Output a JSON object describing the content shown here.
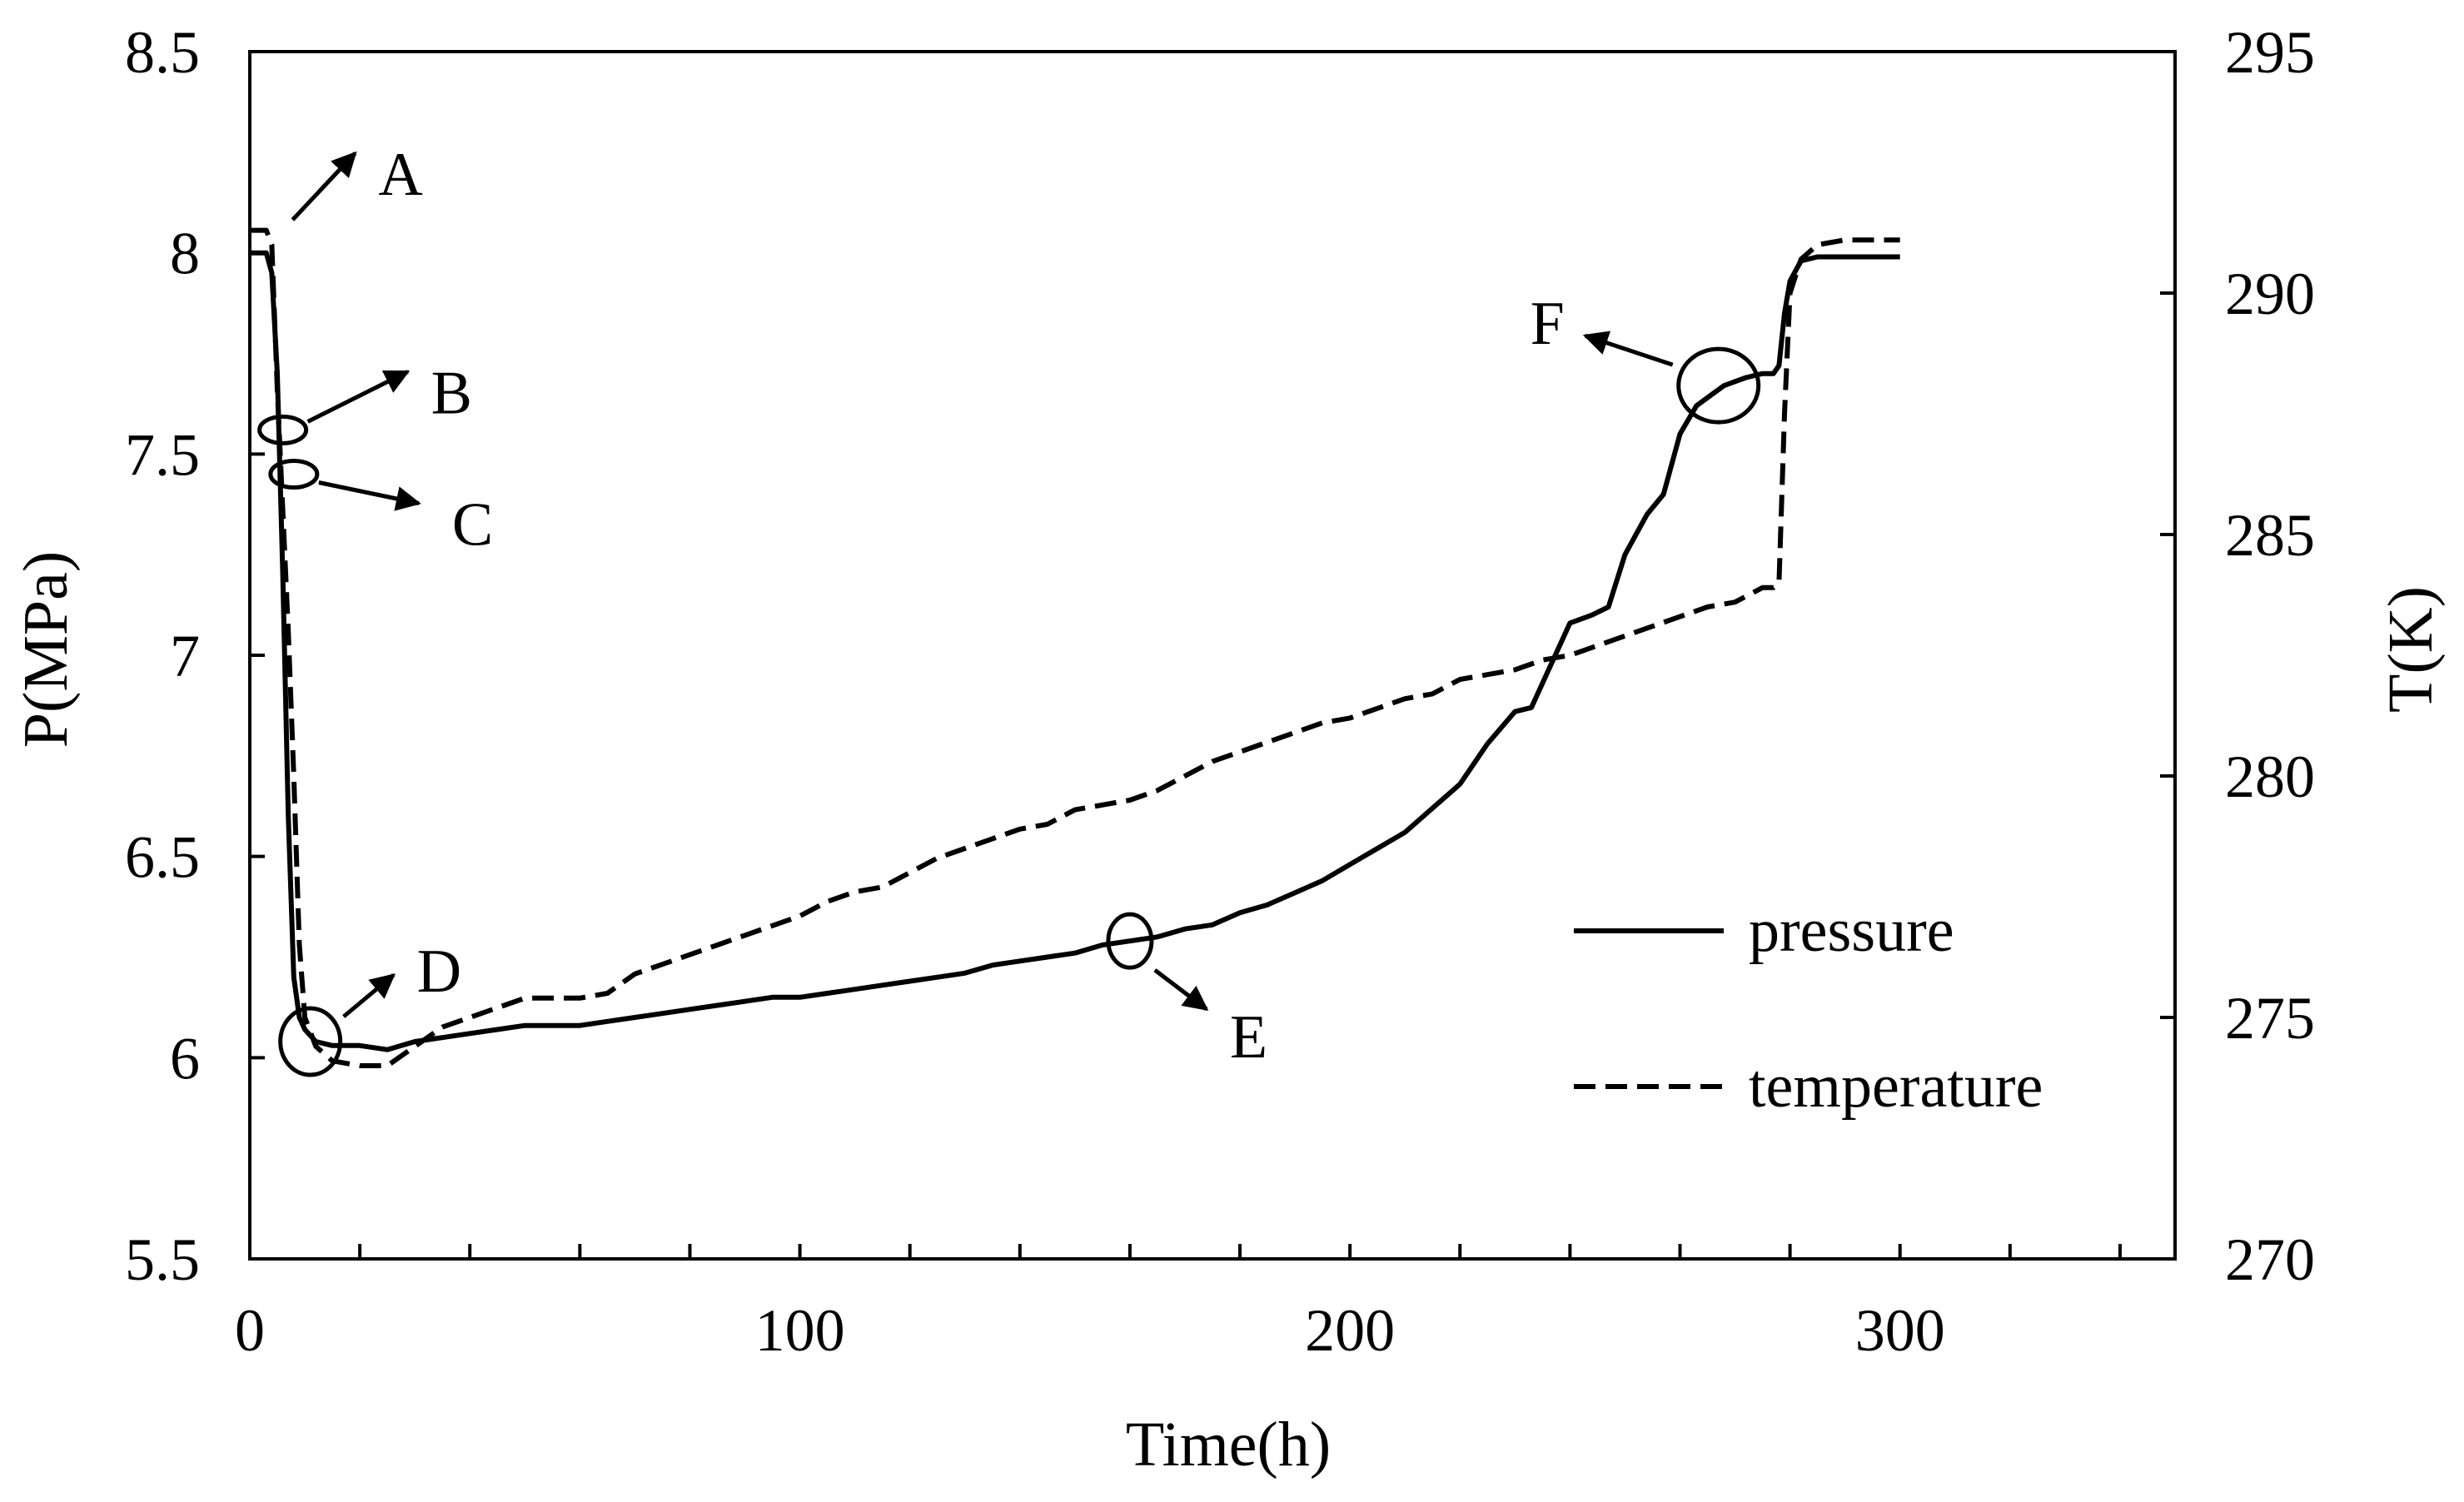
{
  "chart_data": {
    "type": "line",
    "title": "",
    "xlabel": "Time(h)",
    "ylabel_left": "P(MPa)",
    "ylabel_right": "T(K)",
    "xlim": [
      0,
      350
    ],
    "ylim_left": [
      5.5,
      8.5
    ],
    "ylim_right": [
      270,
      295
    ],
    "x_ticks": [
      0,
      100,
      200,
      300
    ],
    "x_minor_ticks": [
      20,
      40,
      60,
      80,
      120,
      140,
      160,
      180,
      220,
      240,
      260,
      280,
      320,
      340
    ],
    "x_tick_labels": [
      "0",
      "100",
      "200",
      "300"
    ],
    "y_left_ticks": [
      5.5,
      6,
      6.5,
      7,
      7.5,
      8,
      8.5
    ],
    "y_left_tick_labels": [
      "5.5",
      "6",
      "6.5",
      "7",
      "7.5",
      "8",
      "8.5"
    ],
    "y_right_ticks": [
      270,
      275,
      280,
      285,
      290,
      295
    ],
    "y_right_tick_labels": [
      "270",
      "275",
      "280",
      "285",
      "290",
      "295"
    ],
    "legend_position": "lower-right",
    "grid": false,
    "series": [
      {
        "name": "pressure",
        "axis": "left",
        "style": "solid",
        "x": [
          0,
          3,
          4,
          5,
          6,
          7,
          8,
          9,
          10,
          12,
          15,
          20,
          25,
          30,
          35,
          40,
          45,
          50,
          55,
          60,
          65,
          70,
          75,
          80,
          85,
          90,
          95,
          100,
          105,
          110,
          115,
          120,
          125,
          130,
          135,
          140,
          145,
          150,
          155,
          160,
          165,
          170,
          175,
          180,
          185,
          190,
          195,
          200,
          205,
          210,
          215,
          220,
          225,
          230,
          233,
          236,
          240,
          244,
          247,
          250,
          254,
          257,
          260,
          263,
          266,
          268,
          270,
          272,
          275,
          277,
          278,
          279,
          280,
          282,
          285,
          290,
          300
        ],
        "values": [
          8.0,
          8.0,
          7.95,
          7.7,
          7.2,
          6.6,
          6.2,
          6.1,
          6.07,
          6.04,
          6.03,
          6.03,
          6.02,
          6.04,
          6.05,
          6.06,
          6.07,
          6.08,
          6.08,
          6.08,
          6.09,
          6.1,
          6.11,
          6.12,
          6.13,
          6.14,
          6.15,
          6.15,
          6.16,
          6.17,
          6.18,
          6.19,
          6.2,
          6.21,
          6.23,
          6.24,
          6.25,
          6.26,
          6.28,
          6.29,
          6.3,
          6.32,
          6.33,
          6.36,
          6.38,
          6.41,
          6.44,
          6.48,
          6.52,
          6.56,
          6.62,
          6.68,
          6.78,
          6.86,
          6.87,
          6.96,
          7.08,
          7.1,
          7.12,
          7.25,
          7.35,
          7.4,
          7.55,
          7.62,
          7.65,
          7.67,
          7.68,
          7.69,
          7.7,
          7.7,
          7.72,
          7.85,
          7.93,
          7.98,
          7.99,
          7.99,
          7.99
        ]
      },
      {
        "name": "temperature",
        "axis": "right",
        "style": "dashed",
        "x": [
          0,
          3,
          4,
          5,
          6,
          7,
          8,
          9,
          10,
          12,
          15,
          20,
          25,
          30,
          35,
          40,
          45,
          50,
          55,
          60,
          65,
          70,
          75,
          80,
          85,
          90,
          95,
          100,
          105,
          110,
          115,
          120,
          125,
          130,
          135,
          140,
          145,
          150,
          155,
          160,
          165,
          170,
          175,
          180,
          185,
          190,
          195,
          200,
          205,
          210,
          215,
          220,
          225,
          230,
          235,
          240,
          245,
          250,
          255,
          260,
          265,
          270,
          275,
          277,
          278,
          279,
          280,
          282,
          285,
          290,
          300
        ],
        "values": [
          291.3,
          291.3,
          291.0,
          288.0,
          285.5,
          283.0,
          280.0,
          276.5,
          275.0,
          274.4,
          274.1,
          274.0,
          274.0,
          274.4,
          274.8,
          275.0,
          275.2,
          275.4,
          275.4,
          275.4,
          275.5,
          275.9,
          276.1,
          276.3,
          276.5,
          276.7,
          276.9,
          277.1,
          277.4,
          277.6,
          277.7,
          278.0,
          278.3,
          278.5,
          278.7,
          278.9,
          279.0,
          279.3,
          279.4,
          279.5,
          279.7,
          280.0,
          280.3,
          280.5,
          280.7,
          280.9,
          281.1,
          281.2,
          281.4,
          281.6,
          281.7,
          282.0,
          282.1,
          282.2,
          282.4,
          282.5,
          282.7,
          282.9,
          283.1,
          283.3,
          283.5,
          283.6,
          283.9,
          283.9,
          284.0,
          287.5,
          290.0,
          290.7,
          291.0,
          291.1,
          291.1
        ]
      }
    ],
    "annotations": [
      {
        "label": "A",
        "x": 4,
        "y_left": 8.02
      },
      {
        "label": "B",
        "x": 6,
        "y_left": 7.56
      },
      {
        "label": "C",
        "x": 8,
        "y_left": 7.45
      },
      {
        "label": "D",
        "x": 11,
        "y_left": 6.04
      },
      {
        "label": "E",
        "x": 160,
        "y_left": 6.29
      },
      {
        "label": "F",
        "x": 267,
        "y_left": 7.67
      }
    ]
  }
}
